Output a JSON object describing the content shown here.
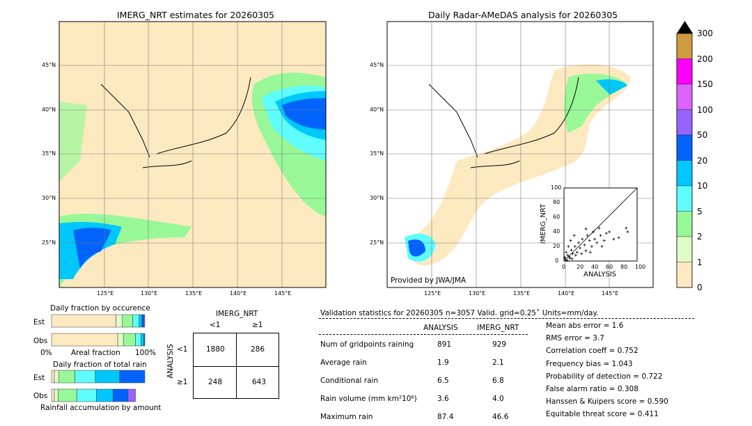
{
  "left_map": {
    "title": "IMERG_NRT estimates for 20260305",
    "lat_ticks": [
      "45°N",
      "40°N",
      "35°N",
      "30°N",
      "25°N"
    ],
    "lon_ticks": [
      "125°E",
      "130°E",
      "135°E",
      "140°E",
      "145°E"
    ]
  },
  "right_map": {
    "title": "Daily Radar-AMeDAS analysis for 20260305",
    "credit": "Provided by JWA/JMA",
    "lat_ticks": [
      "45°N",
      "40°N",
      "35°N",
      "30°N",
      "25°N"
    ],
    "lon_ticks": [
      "125°E",
      "130°E",
      "135°E",
      "140°E",
      "145°E"
    ]
  },
  "colorbar": {
    "labels": [
      "300",
      "200",
      "150",
      "100",
      "50",
      "20",
      "10",
      "5",
      "2",
      "1",
      "0"
    ],
    "colors": [
      "#d09a40",
      "#fc00fc",
      "#dc64fc",
      "#9664fc",
      "#0064fc",
      "#00c8fc",
      "#5ffcfc",
      "#98f898",
      "#e0fcc8",
      "#fde9c0"
    ],
    "extend_color": "#000000"
  },
  "scatter": {
    "xlabel": "ANALYSIS",
    "ylabel": "IMERG_NRT",
    "ticks": [
      "0",
      "20",
      "40",
      "60",
      "80",
      "100"
    ],
    "points": [
      [
        2,
        3
      ],
      [
        5,
        8
      ],
      [
        8,
        4
      ],
      [
        10,
        15
      ],
      [
        12,
        10
      ],
      [
        15,
        20
      ],
      [
        18,
        12
      ],
      [
        20,
        25
      ],
      [
        22,
        18
      ],
      [
        25,
        30
      ],
      [
        28,
        22
      ],
      [
        30,
        14
      ],
      [
        32,
        35
      ],
      [
        35,
        28
      ],
      [
        38,
        20
      ],
      [
        40,
        40
      ],
      [
        42,
        30
      ],
      [
        45,
        25
      ],
      [
        48,
        45
      ],
      [
        50,
        35
      ],
      [
        55,
        28
      ],
      [
        58,
        38
      ],
      [
        62,
        40
      ],
      [
        68,
        30
      ],
      [
        75,
        32
      ],
      [
        85,
        45
      ],
      [
        87,
        40
      ],
      [
        3,
        12
      ],
      [
        6,
        20
      ],
      [
        9,
        28
      ],
      [
        14,
        35
      ],
      [
        4,
        1
      ],
      [
        7,
        6
      ],
      [
        1,
        5
      ],
      [
        11,
        3
      ],
      [
        16,
        8
      ],
      [
        24,
        10
      ],
      [
        30,
        44
      ],
      [
        52,
        20
      ],
      [
        36,
        12
      ]
    ]
  },
  "occurrence": {
    "title": "Daily fraction by occurence",
    "rows": [
      {
        "label": "Est",
        "fractions": [
          0.69,
          0.07,
          0.11,
          0.07,
          0.03,
          0.02,
          0.01
        ]
      },
      {
        "label": "Obs",
        "fractions": [
          0.71,
          0.06,
          0.13,
          0.06,
          0.03,
          0.01,
          0
        ]
      }
    ],
    "xmin": "0%",
    "xlabel": "Areal fraction",
    "xmax": "100%"
  },
  "total_rain": {
    "title": "Daily fraction of total rain",
    "rows": [
      {
        "label": "Est",
        "fractions": [
          0.03,
          0.05,
          0.17,
          0.22,
          0.26,
          0.27,
          0
        ]
      },
      {
        "label": "Obs",
        "fractions": [
          0.03,
          0.04,
          0.2,
          0.21,
          0.18,
          0.16,
          0.08
        ]
      }
    ],
    "xlabel": "Rainfall accumulation by amount"
  },
  "contingency": {
    "col_title": "IMERG_NRT",
    "row_title": "ANALYSIS",
    "col_labels": [
      "<1",
      "≥1"
    ],
    "row_labels": [
      "<1",
      "≥1"
    ],
    "cells": [
      [
        "1880",
        "286"
      ],
      [
        "248",
        "643"
      ]
    ]
  },
  "stats": {
    "header": "Validation statistics for 20260305  n=3057 Valid. grid=0.25˚ Units=mm/day.",
    "col1": "ANALYSIS",
    "col2": "IMERG_NRT",
    "rows": [
      {
        "label": "Num of gridpoints raining",
        "a": "891",
        "b": "929"
      },
      {
        "label": "Average rain",
        "a": "1.9",
        "b": "2.1"
      },
      {
        "label": "Conditional rain",
        "a": "6.5",
        "b": "6.8"
      },
      {
        "label": "Rain volume (mm km²10⁶)",
        "a": "3.6",
        "b": "4.0"
      },
      {
        "label": "Maximum rain",
        "a": "87.4",
        "b": "46.6"
      }
    ],
    "scores": [
      "Mean abs error =    1.6",
      "RMS error =    3.7",
      "Correlation coeff =  0.752",
      "Frequency bias =  1.043",
      "Probability of detection =  0.722",
      "False alarm ratio =  0.308",
      "Hanssen & Kuipers score =  0.590",
      "Equitable threat score =  0.411"
    ]
  }
}
